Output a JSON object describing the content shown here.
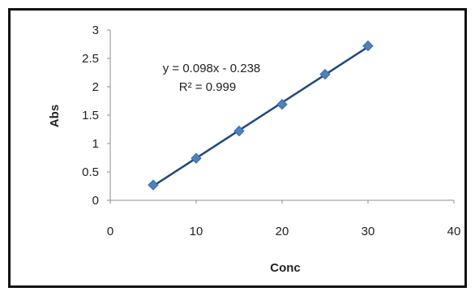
{
  "chart_data": {
    "type": "scatter",
    "title": "",
    "xlabel": "Conc",
    "ylabel": "Abs",
    "xlim": [
      0,
      40
    ],
    "ylim": [
      0,
      3
    ],
    "xticks": [
      "0",
      "10",
      "20",
      "30",
      "40"
    ],
    "yticks": [
      "0",
      "0.5",
      "1",
      "1.5",
      "2",
      "2.5",
      "3"
    ],
    "grid": false,
    "legend": "none",
    "series": [
      {
        "x": [
          5,
          10,
          15,
          20,
          25,
          30
        ],
        "y": [
          0.27,
          0.74,
          1.22,
          1.69,
          2.22,
          2.72
        ],
        "marker": "diamond",
        "color": "#4f81bd"
      }
    ],
    "trendline": {
      "type": "linear",
      "slope": 0.098,
      "intercept": -0.238,
      "x_range": [
        5,
        30
      ],
      "color": "#1f497d",
      "equation_label": "y = 0.098x - 0.238",
      "r2_label": "R² = 0.999"
    }
  }
}
